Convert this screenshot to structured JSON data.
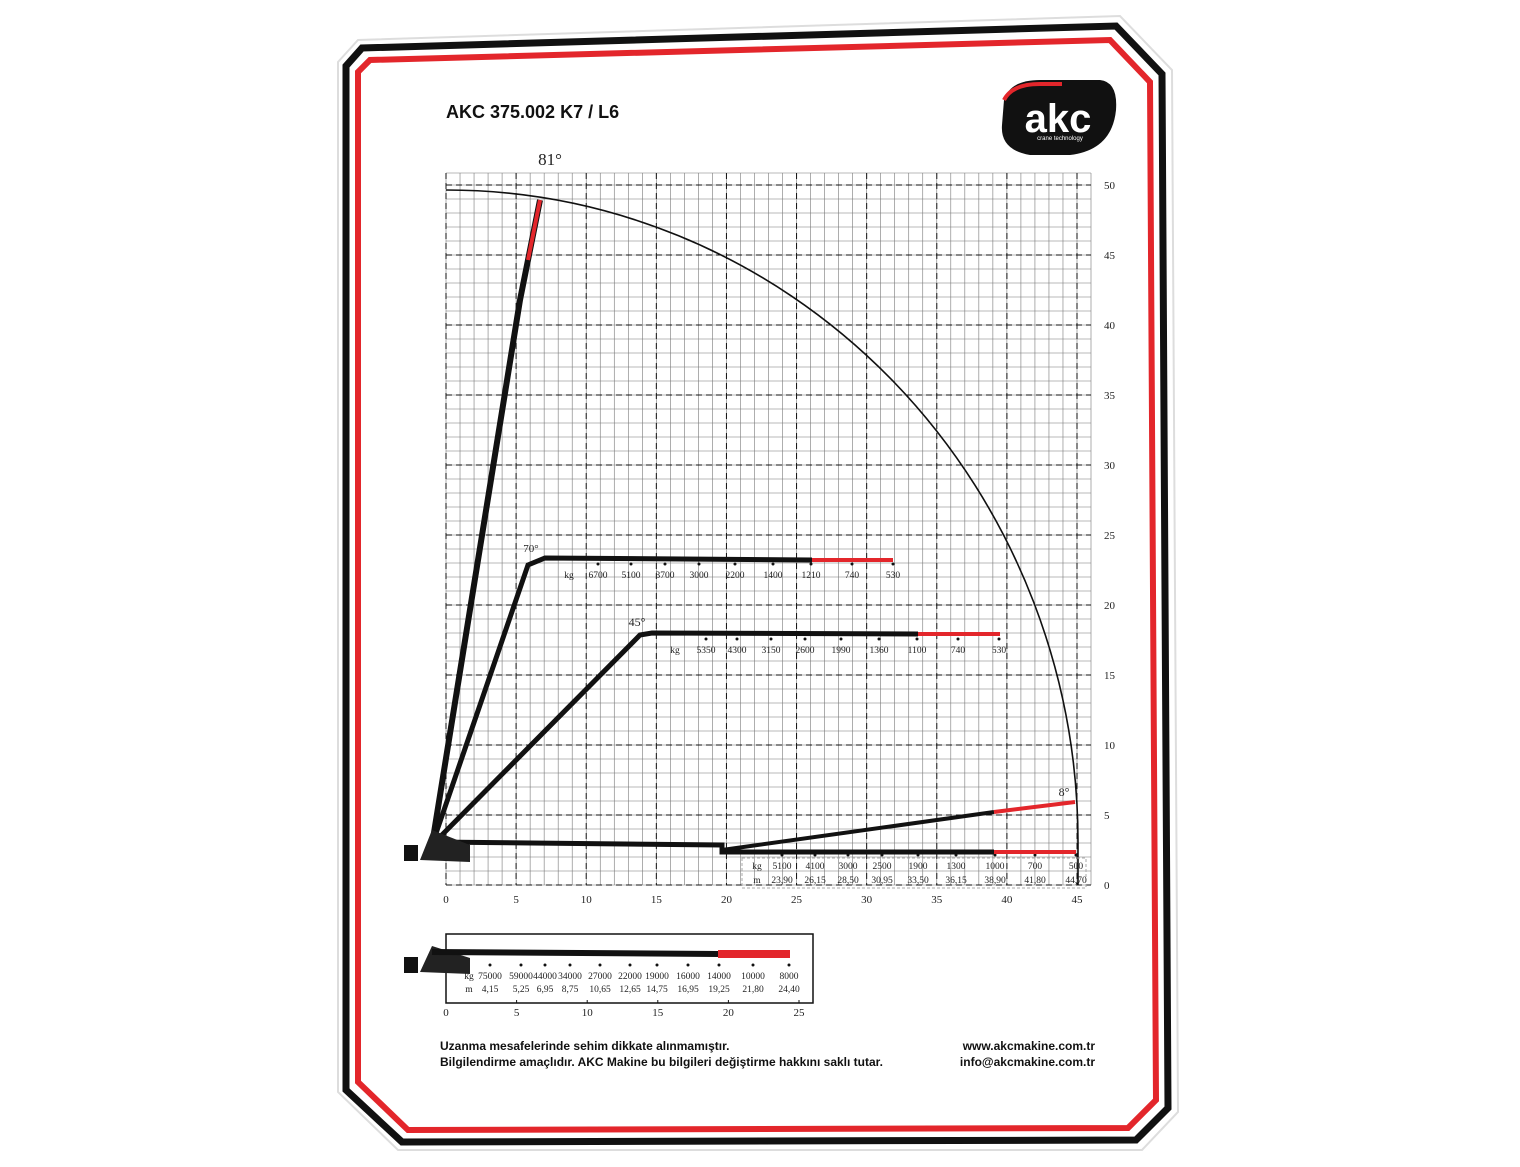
{
  "header": {
    "title": "AKC 375.002 K7 / L6",
    "logo": "akc",
    "logo_tagline": "crane technology"
  },
  "main_chart": {
    "xlim": [
      0,
      45
    ],
    "ylim": [
      0,
      50
    ],
    "xticks": [
      0,
      5,
      10,
      15,
      20,
      25,
      30,
      35,
      40,
      45
    ],
    "yticks": [
      0,
      5,
      10,
      15,
      20,
      25,
      30,
      35,
      40,
      45,
      50
    ],
    "angles": [
      "81°",
      "70°",
      "45°",
      "8°"
    ],
    "boom_70": {
      "unit": "kg",
      "loads": [
        6700,
        5100,
        3700,
        3000,
        2200,
        1400,
        1210,
        740,
        530
      ]
    },
    "boom_45": {
      "unit": "kg",
      "loads": [
        5350,
        4300,
        3150,
        2600,
        1990,
        1360,
        1100,
        740,
        530
      ]
    },
    "boom_8": {
      "kg_unit": "kg",
      "m_unit": "m",
      "loads": [
        5100,
        4100,
        3000,
        2500,
        1900,
        1300,
        1000,
        700,
        500
      ],
      "reaches": [
        "23,90",
        "26,15",
        "28,50",
        "30,95",
        "33,50",
        "36,15",
        "38,90",
        "41,80",
        "44,70"
      ]
    }
  },
  "bottom_chart": {
    "xlim": [
      0,
      25
    ],
    "xticks": [
      0,
      5,
      10,
      15,
      20,
      25
    ],
    "kg_unit": "kg",
    "m_unit": "m",
    "loads": [
      75000,
      59000,
      44000,
      34000,
      27000,
      22000,
      19000,
      16000,
      14000,
      10000,
      8000
    ],
    "reaches": [
      "4,15",
      "5,25",
      "6,95",
      "8,75",
      "10,65",
      "12,65",
      "14,75",
      "16,95",
      "19,25",
      "21,80",
      "24,40"
    ]
  },
  "footer": {
    "notes": [
      "Uzanma mesafelerinde sehim dikkate alınmamıştır.",
      "Bilgilendirme amaçlıdır. AKC Makine bu bilgileri değiştirme hakkını saklı tutar."
    ],
    "website": "www.akcmakine.com.tr",
    "email": "info@akcmakine.com.tr"
  }
}
